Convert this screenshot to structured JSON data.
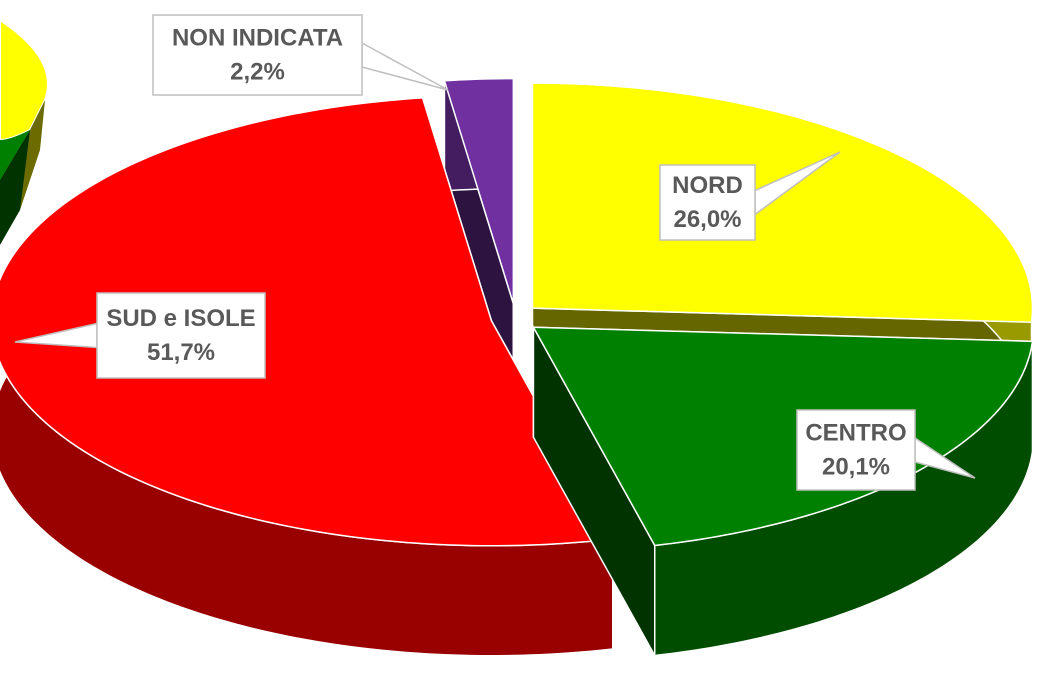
{
  "chart_data": {
    "type": "pie3d",
    "categories": [
      "NORD",
      "CENTRO",
      "SUD e ISOLE",
      "NON INDICATA"
    ],
    "values": [
      26.0,
      20.1,
      51.7,
      2.2
    ],
    "value_labels": [
      "26,0%",
      "20,1%",
      "51,7%",
      "2,2%"
    ],
    "colors": [
      "#ffff00",
      "#008000",
      "#ff0000",
      "#7030a0"
    ]
  }
}
